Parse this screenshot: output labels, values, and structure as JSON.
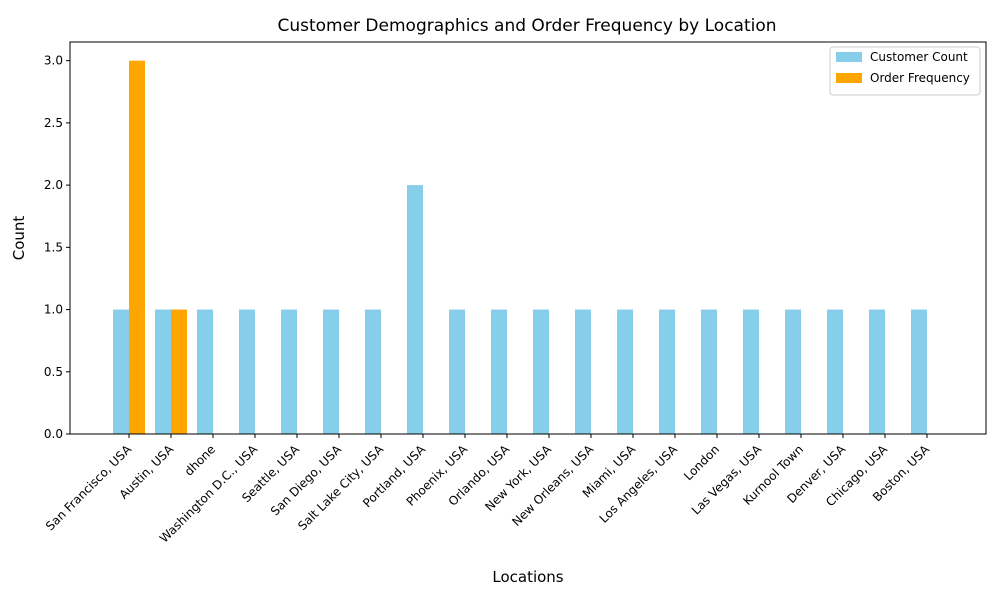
{
  "chart_data": {
    "type": "bar",
    "title": "Customer Demographics and Order Frequency by Location",
    "xlabel": "Locations",
    "ylabel": "Count",
    "ylim": [
      0,
      3.15
    ],
    "yticks": [
      "0.0",
      "0.5",
      "1.0",
      "1.5",
      "2.0",
      "2.5",
      "3.0"
    ],
    "grid": false,
    "legend_position": "top-right",
    "categories": [
      "San Francisco, USA",
      "Austin, USA",
      "dhone",
      "Washington D.C., USA",
      "Seattle, USA",
      "San Diego, USA",
      "Salt Lake City, USA",
      "Portland, USA",
      "Phoenix, USA",
      "Orlando, USA",
      "New York, USA",
      "New Orleans, USA",
      "Miami, USA",
      "Los Angeles, USA",
      "London",
      "Las Vegas, USA",
      "Kurnool Town",
      "Denver, USA",
      "Chicago, USA",
      "Boston, USA"
    ],
    "series": [
      {
        "name": "Customer Count",
        "color": "#87ceeb",
        "values": [
          1,
          1,
          1,
          1,
          1,
          1,
          1,
          2,
          1,
          1,
          1,
          1,
          1,
          1,
          1,
          1,
          1,
          1,
          1,
          1
        ]
      },
      {
        "name": "Order Frequency",
        "color": "#ffa500",
        "values": [
          3,
          1,
          0,
          0,
          0,
          0,
          0,
          0,
          0,
          0,
          0,
          0,
          0,
          0,
          0,
          0,
          0,
          0,
          0,
          0
        ]
      }
    ]
  }
}
